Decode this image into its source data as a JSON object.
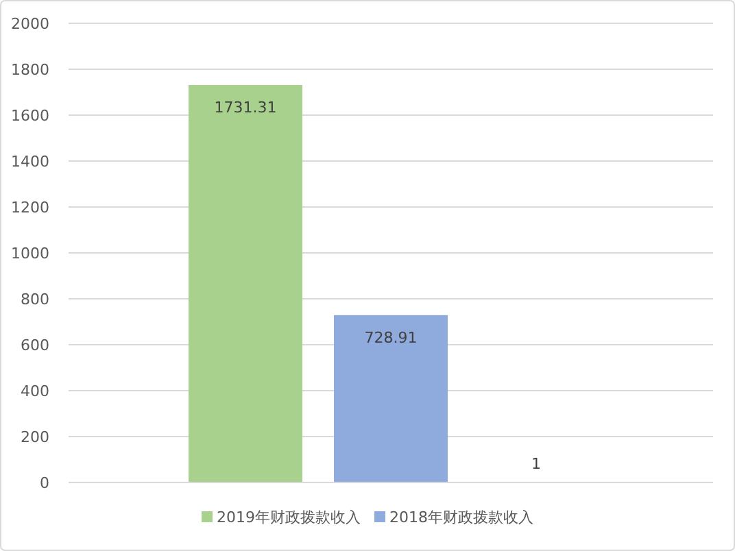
{
  "chart_data": {
    "type": "bar",
    "categories": [
      null
    ],
    "series": [
      {
        "name": "2019年财政拨款收入",
        "color": "#a9d18e",
        "values": [
          1731.31
        ]
      },
      {
        "name": "2018年财政拨款收入",
        "color": "#8faadc",
        "values": [
          728.91
        ]
      },
      {
        "color": "#f4b183",
        "values": [
          1
        ]
      }
    ],
    "ylim": [
      0,
      2000
    ],
    "yticks": [
      0,
      200,
      400,
      600,
      800,
      1000,
      1200,
      1400,
      1600,
      1800,
      2000
    ],
    "grid": "y",
    "legend": "bottom",
    "data_labels": true
  }
}
